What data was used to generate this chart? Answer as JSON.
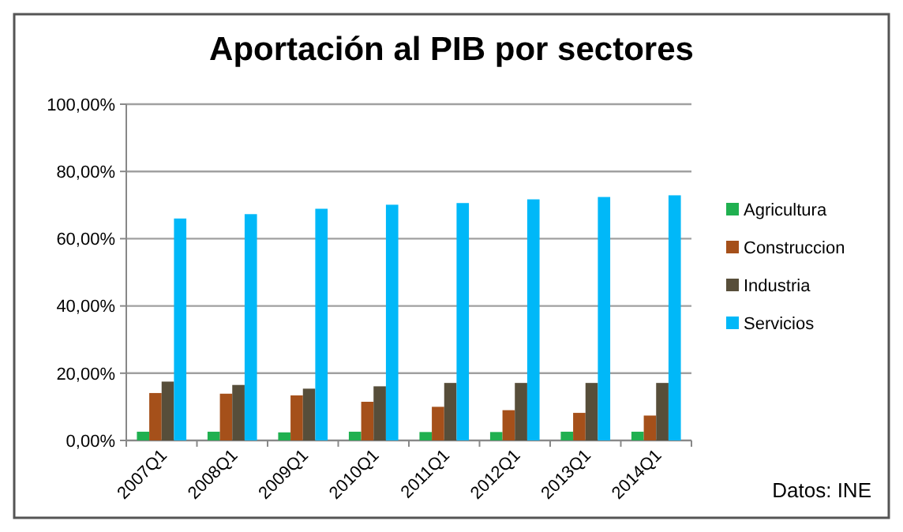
{
  "chart_data": {
    "type": "bar",
    "title": "Aportación al PIB por sectores",
    "categories": [
      "2007Q1",
      "2008Q1",
      "2009Q1",
      "2010Q1",
      "2011Q1",
      "2012Q1",
      "2013Q1",
      "2014Q1"
    ],
    "series": [
      {
        "name": "Agricultura",
        "color": "#20b050",
        "values": [
          2.6,
          2.6,
          2.4,
          2.6,
          2.5,
          2.5,
          2.6,
          2.6
        ]
      },
      {
        "name": "Construccion",
        "color": "#a5501a",
        "values": [
          14.1,
          13.9,
          13.4,
          11.5,
          10.0,
          9.0,
          8.2,
          7.4
        ]
      },
      {
        "name": "Industria",
        "color": "#574e3a",
        "values": [
          17.5,
          16.5,
          15.4,
          16.1,
          17.1,
          17.1,
          17.1,
          17.1
        ]
      },
      {
        "name": "Servicios",
        "color": "#00b8f8",
        "values": [
          66.0,
          67.3,
          68.9,
          70.1,
          70.6,
          71.7,
          72.4,
          72.9
        ]
      }
    ],
    "ylim": [
      0,
      100
    ],
    "yticks": [
      {
        "value": 0,
        "label": "0,00%"
      },
      {
        "value": 20,
        "label": "20,00%"
      },
      {
        "value": 40,
        "label": "40,00%"
      },
      {
        "value": 60,
        "label": "60,00%"
      },
      {
        "value": 80,
        "label": "80,00%"
      },
      {
        "value": 100,
        "label": "100,00%"
      }
    ],
    "grid": "y",
    "legend": "right",
    "annotations": [
      "Datos: INE"
    ]
  }
}
